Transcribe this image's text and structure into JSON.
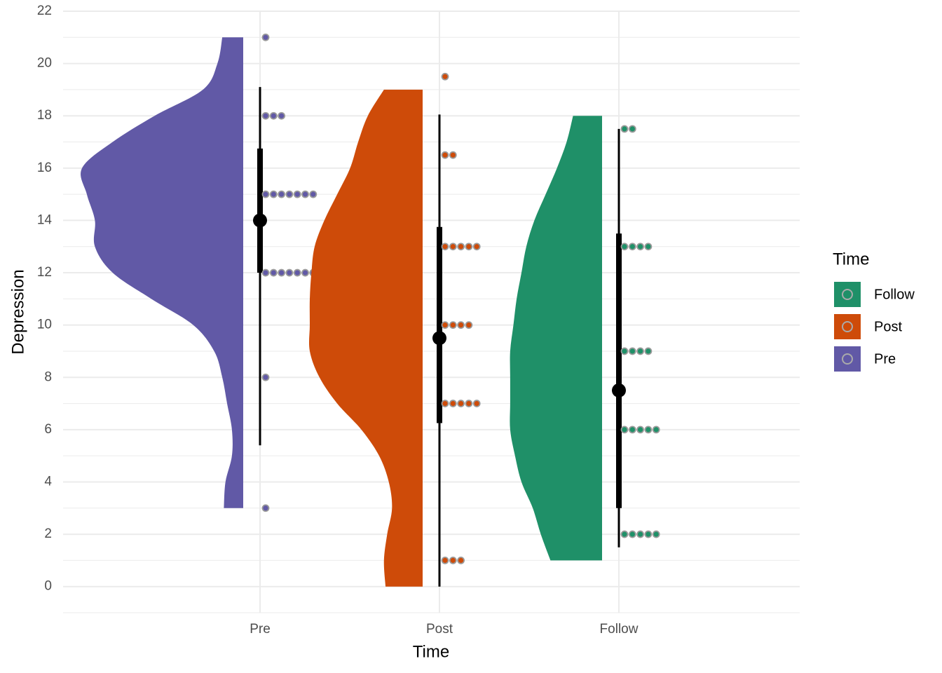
{
  "chart_data": {
    "type": "raincloud",
    "x_label": "Time",
    "y_label": "Depression",
    "categories": [
      "Pre",
      "Post",
      "Follow"
    ],
    "ylim": [
      -1,
      22
    ],
    "yticks": [
      0,
      2,
      4,
      6,
      8,
      10,
      12,
      14,
      16,
      18,
      20,
      22
    ],
    "y_minor_ticks": [
      -1,
      1,
      3,
      5,
      7,
      9,
      11,
      13,
      15,
      17,
      19,
      21
    ],
    "grid": true,
    "legend": {
      "title": "Time",
      "position": "right"
    },
    "series": [
      {
        "name": "Pre",
        "color": "#6159a6",
        "density_y": [
          21,
          20,
          19,
          18,
          17,
          16,
          15,
          14,
          13,
          12,
          11,
          10,
          9,
          8,
          7,
          6,
          5,
          4,
          3
        ],
        "density": [
          0.13,
          0.16,
          0.25,
          0.55,
          0.81,
          1,
          0.97,
          0.92,
          0.92,
          0.81,
          0.57,
          0.31,
          0.18,
          0.13,
          0.1,
          0.07,
          0.07,
          0.11,
          0.12
        ],
        "points": [
          21,
          18,
          18,
          18,
          15,
          15,
          15,
          15,
          15,
          15,
          15,
          12,
          12,
          12,
          12,
          12,
          12,
          12,
          8,
          3
        ],
        "median": 14,
        "interval_66": [
          12,
          16.75
        ],
        "interval_95": [
          5.4,
          19.1
        ]
      },
      {
        "name": "Post",
        "color": "#ce4b09",
        "density_y": [
          19,
          18,
          17,
          16,
          15,
          14,
          13,
          12,
          11,
          10,
          9,
          8,
          7,
          6,
          5,
          4,
          3,
          2,
          1,
          0
        ],
        "density": [
          0.24,
          0.34,
          0.4,
          0.45,
          0.53,
          0.61,
          0.67,
          0.69,
          0.7,
          0.7,
          0.7,
          0.64,
          0.53,
          0.38,
          0.27,
          0.21,
          0.19,
          0.22,
          0.24,
          0.23
        ],
        "points": [
          19.5,
          16.5,
          16.5,
          13,
          13,
          13,
          13,
          13,
          10,
          10,
          10,
          10,
          7,
          7,
          7,
          7,
          7,
          1,
          1,
          1
        ],
        "median": 9.5,
        "interval_66": [
          6.25,
          13.75
        ],
        "interval_95": [
          0,
          18.05
        ]
      },
      {
        "name": "Follow",
        "color": "#1f9068",
        "density_y": [
          18,
          17,
          16,
          15,
          14,
          13,
          12,
          11,
          10,
          9,
          8,
          7,
          6,
          5,
          4,
          3,
          2,
          1
        ],
        "density": [
          0.18,
          0.22,
          0.28,
          0.35,
          0.42,
          0.47,
          0.5,
          0.53,
          0.55,
          0.57,
          0.57,
          0.57,
          0.57,
          0.54,
          0.5,
          0.43,
          0.38,
          0.32
        ],
        "points": [
          17.5,
          17.5,
          13,
          13,
          13,
          13,
          9,
          9,
          9,
          9,
          6,
          6,
          6,
          6,
          6,
          2,
          2,
          2,
          2,
          2
        ],
        "median": 7.5,
        "interval_66": [
          3,
          13.5
        ],
        "interval_95": [
          1.5,
          17.5
        ]
      }
    ]
  }
}
